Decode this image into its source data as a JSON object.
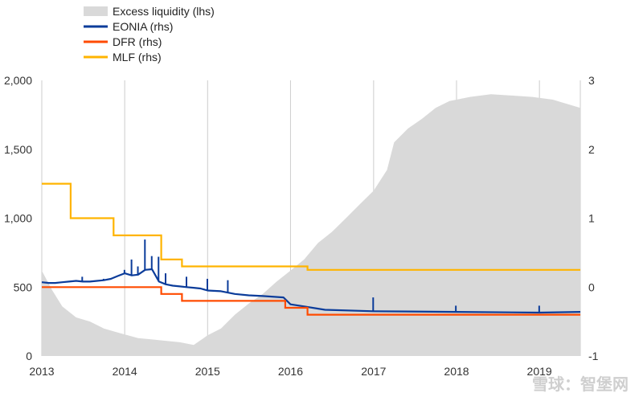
{
  "chart_data": {
    "type": "area",
    "title": "",
    "x_domain": [
      "2013-01-01",
      "2019-06-30"
    ],
    "x_ticks": [
      "2013",
      "2014",
      "2015",
      "2016",
      "2017",
      "2018",
      "2019"
    ],
    "y_left": {
      "label": "",
      "range": [
        0,
        2000
      ],
      "ticks": [
        "0",
        "500",
        "1,000",
        "1,500",
        "2,000"
      ]
    },
    "y_right": {
      "label": "",
      "range": [
        -1,
        3
      ],
      "ticks": [
        "-1",
        "0",
        "1",
        "2",
        "3"
      ]
    },
    "grid": "vertical",
    "legend": {
      "placement": "top-left"
    },
    "series": [
      {
        "name": "Excess liquidity (lhs)",
        "type": "area",
        "axis": "left",
        "color": "#d9d9d9",
        "points": [
          [
            "2013-01-01",
            620
          ],
          [
            "2013-02-15",
            480
          ],
          [
            "2013-04-01",
            360
          ],
          [
            "2013-06-01",
            280
          ],
          [
            "2013-08-01",
            250
          ],
          [
            "2013-10-01",
            200
          ],
          [
            "2013-12-01",
            170
          ],
          [
            "2014-01-15",
            150
          ],
          [
            "2014-03-01",
            130
          ],
          [
            "2014-05-01",
            120
          ],
          [
            "2014-07-01",
            110
          ],
          [
            "2014-09-01",
            100
          ],
          [
            "2014-11-01",
            80
          ],
          [
            "2015-01-01",
            150
          ],
          [
            "2015-03-01",
            200
          ],
          [
            "2015-05-01",
            300
          ],
          [
            "2015-07-01",
            380
          ],
          [
            "2015-09-01",
            450
          ],
          [
            "2015-11-01",
            540
          ],
          [
            "2016-01-01",
            620
          ],
          [
            "2016-03-01",
            700
          ],
          [
            "2016-05-01",
            820
          ],
          [
            "2016-07-01",
            900
          ],
          [
            "2016-09-01",
            1000
          ],
          [
            "2016-11-01",
            1100
          ],
          [
            "2017-01-01",
            1200
          ],
          [
            "2017-03-01",
            1350
          ],
          [
            "2017-04-01",
            1550
          ],
          [
            "2017-06-01",
            1650
          ],
          [
            "2017-08-01",
            1720
          ],
          [
            "2017-10-01",
            1800
          ],
          [
            "2017-12-01",
            1850
          ],
          [
            "2018-03-01",
            1880
          ],
          [
            "2018-06-01",
            1900
          ],
          [
            "2018-09-01",
            1890
          ],
          [
            "2018-12-01",
            1880
          ],
          [
            "2019-03-01",
            1860
          ],
          [
            "2019-06-30",
            1800
          ]
        ]
      },
      {
        "name": "EONIA (rhs)",
        "type": "line",
        "axis": "right",
        "color": "#0b3c9a",
        "points": [
          [
            "2013-01-01",
            0.07
          ],
          [
            "2013-02-01",
            0.06
          ],
          [
            "2013-03-01",
            0.06
          ],
          [
            "2013-04-01",
            0.07
          ],
          [
            "2013-05-01",
            0.08
          ],
          [
            "2013-06-01",
            0.09
          ],
          [
            "2013-07-01",
            0.08
          ],
          [
            "2013-08-01",
            0.08
          ],
          [
            "2013-09-01",
            0.09
          ],
          [
            "2013-10-01",
            0.1
          ],
          [
            "2013-11-01",
            0.12
          ],
          [
            "2013-12-01",
            0.16
          ],
          [
            "2014-01-01",
            0.2
          ],
          [
            "2014-02-01",
            0.17
          ],
          [
            "2014-03-01",
            0.18
          ],
          [
            "2014-04-01",
            0.25
          ],
          [
            "2014-05-01",
            0.26
          ],
          [
            "2014-06-01",
            0.08
          ],
          [
            "2014-07-01",
            0.04
          ],
          [
            "2014-08-01",
            0.02
          ],
          [
            "2014-09-01",
            0.01
          ],
          [
            "2014-10-01",
            0.0
          ],
          [
            "2014-11-01",
            -0.01
          ],
          [
            "2014-12-01",
            -0.02
          ],
          [
            "2015-01-01",
            -0.05
          ],
          [
            "2015-03-01",
            -0.06
          ],
          [
            "2015-05-01",
            -0.1
          ],
          [
            "2015-07-01",
            -0.12
          ],
          [
            "2015-09-01",
            -0.13
          ],
          [
            "2015-12-01",
            -0.15
          ],
          [
            "2016-01-01",
            -0.25
          ],
          [
            "2016-03-01",
            -0.28
          ],
          [
            "2016-06-01",
            -0.33
          ],
          [
            "2017-01-01",
            -0.35
          ],
          [
            "2018-01-01",
            -0.36
          ],
          [
            "2019-01-01",
            -0.37
          ],
          [
            "2019-06-30",
            -0.36
          ]
        ],
        "spikes": [
          [
            "2013-06-28",
            0.15
          ],
          [
            "2013-09-30",
            0.12
          ],
          [
            "2013-12-31",
            0.25
          ],
          [
            "2014-01-31",
            0.4
          ],
          [
            "2014-02-28",
            0.3
          ],
          [
            "2014-03-31",
            0.69
          ],
          [
            "2014-04-30",
            0.45
          ],
          [
            "2014-05-30",
            0.44
          ],
          [
            "2014-06-30",
            0.2
          ],
          [
            "2014-09-30",
            0.15
          ],
          [
            "2014-12-31",
            0.12
          ],
          [
            "2015-03-31",
            0.1
          ],
          [
            "2016-12-30",
            -0.15
          ],
          [
            "2017-12-29",
            -0.27
          ],
          [
            "2018-12-31",
            -0.27
          ]
        ]
      },
      {
        "name": "DFR (rhs)",
        "type": "step",
        "axis": "right",
        "color": "#ff4b00",
        "points": [
          [
            "2013-01-01",
            0.0
          ],
          [
            "2014-06-11",
            -0.1
          ],
          [
            "2014-09-10",
            -0.2
          ],
          [
            "2015-12-09",
            -0.3
          ],
          [
            "2016-03-16",
            -0.4
          ],
          [
            "2019-06-30",
            -0.4
          ]
        ]
      },
      {
        "name": "MLF (rhs)",
        "type": "step",
        "axis": "right",
        "color": "#ffb400",
        "points": [
          [
            "2013-01-01",
            1.5
          ],
          [
            "2013-05-08",
            1.0
          ],
          [
            "2013-11-13",
            0.75
          ],
          [
            "2014-06-11",
            0.4
          ],
          [
            "2014-09-10",
            0.3
          ],
          [
            "2016-03-16",
            0.25
          ],
          [
            "2019-06-30",
            0.25
          ]
        ]
      }
    ]
  },
  "watermark": "雪球：智堡网"
}
